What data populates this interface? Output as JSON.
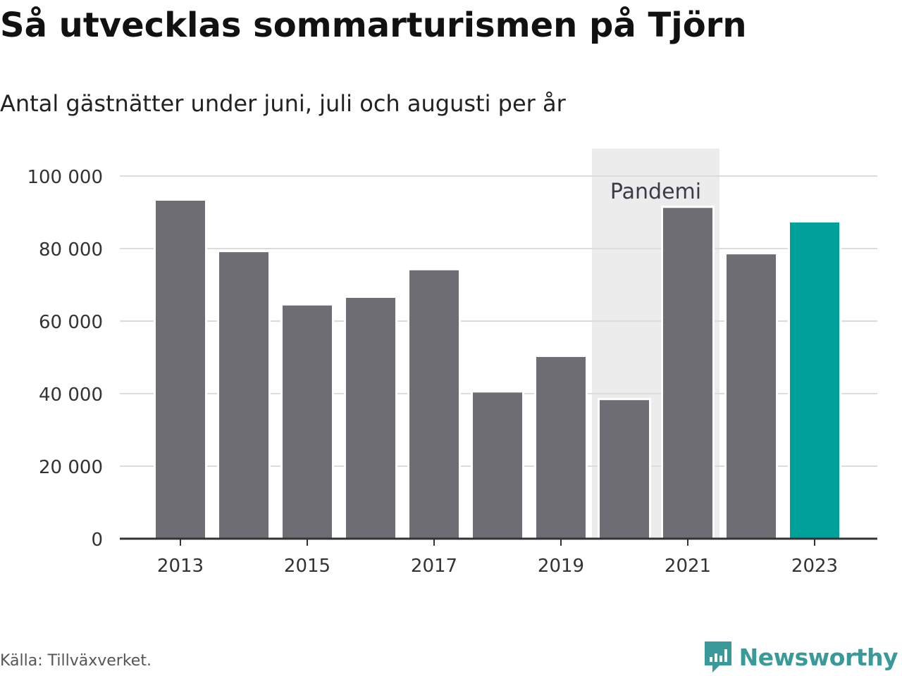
{
  "header": {
    "title": "Så utvecklas sommarturismen på Tjörn",
    "subtitle": "Antal gästnätter under juni, juli och augusti per år"
  },
  "footer": {
    "source": "Källa: Tillväxverket.",
    "brand_name": "Newsworthy",
    "brand_icon": "bar-chart-speech-bubble-icon"
  },
  "colors": {
    "bar": "#6e6d73",
    "highlight": "#00a19a",
    "band": "#ececec",
    "grid": "#dcdcdc",
    "axis": "#333333",
    "brand": "#3a9a9a"
  },
  "chart_data": {
    "type": "bar",
    "categories": [
      "2013",
      "2014",
      "2015",
      "2016",
      "2017",
      "2018",
      "2019",
      "2020",
      "2021",
      "2022",
      "2023"
    ],
    "values": [
      93500,
      79300,
      64600,
      66700,
      74300,
      40600,
      50400,
      38500,
      91500,
      78700,
      87500
    ],
    "highlight_category": "2023",
    "x_tick_labels": [
      "2013",
      "2015",
      "2017",
      "2019",
      "2021",
      "2023"
    ],
    "y_ticks": [
      0,
      20000,
      40000,
      60000,
      80000,
      100000
    ],
    "y_tick_labels": [
      "0",
      "20 000",
      "40 000",
      "60 000",
      "80 000",
      "100 000"
    ],
    "ylim": [
      0,
      100000
    ],
    "grid": true,
    "annotation": {
      "label": "Pandemi",
      "from_category": "2020",
      "to_category": "2021"
    }
  }
}
